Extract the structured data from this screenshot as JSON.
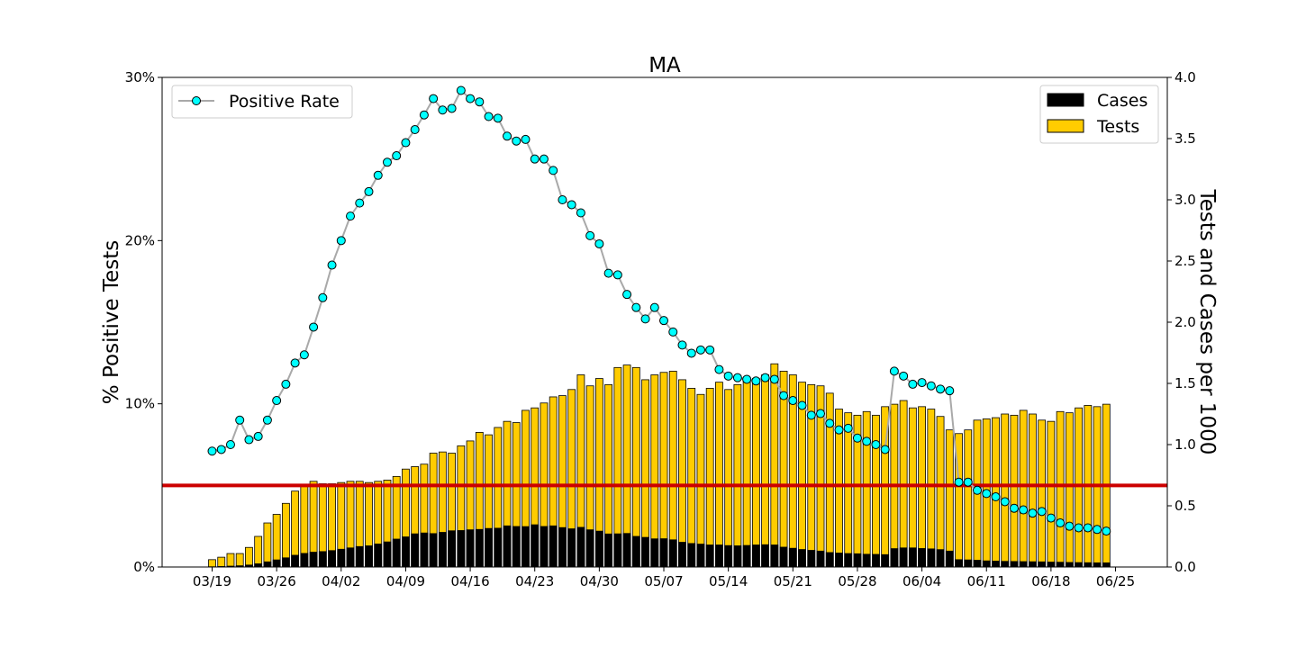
{
  "chart_data": {
    "type": "bar+line",
    "title": "MA",
    "ylabel_left": "% Positive Tests",
    "ylabel_right": "Tests and Cases per 1000",
    "x_start_label": "03/19",
    "x_tick_labels": [
      "03/19",
      "03/26",
      "04/02",
      "04/09",
      "04/16",
      "04/23",
      "04/30",
      "05/07",
      "05/14",
      "05/21",
      "05/28",
      "06/04",
      "06/11",
      "06/18",
      "06/25"
    ],
    "y_left_ticks": [
      "0%",
      "10%",
      "20%",
      "30%"
    ],
    "y_left_lim": [
      0,
      30
    ],
    "y_right_ticks": [
      "0.0",
      "0.5",
      "1.0",
      "1.5",
      "2.0",
      "2.5",
      "3.0",
      "3.5",
      "4.0"
    ],
    "y_right_lim": [
      0,
      4
    ],
    "threshold_percent": 5,
    "legend_line": {
      "label": "Positive Rate",
      "position": "top-left"
    },
    "legend_bars": {
      "position": "top-right",
      "items": [
        {
          "label": "Cases",
          "color": "#000000"
        },
        {
          "label": "Tests",
          "color": "#ffcc00"
        }
      ]
    },
    "colors": {
      "tests": "#ffcc00",
      "cases": "#000000",
      "rate_line": "#a9a9a9",
      "rate_marker": "#00ffff",
      "threshold": "#cc0000"
    },
    "series": [
      {
        "name": "Tests",
        "values": [
          0.06,
          0.08,
          0.11,
          0.11,
          0.16,
          0.25,
          0.36,
          0.43,
          0.52,
          0.62,
          0.67,
          0.7,
          0.68,
          0.68,
          0.69,
          0.7,
          0.7,
          0.69,
          0.7,
          0.71,
          0.74,
          0.8,
          0.82,
          0.84,
          0.93,
          0.94,
          0.93,
          0.99,
          1.03,
          1.1,
          1.08,
          1.14,
          1.19,
          1.18,
          1.28,
          1.3,
          1.34,
          1.39,
          1.4,
          1.45,
          1.57,
          1.48,
          1.54,
          1.49,
          1.63,
          1.65,
          1.63,
          1.53,
          1.57,
          1.59,
          1.6,
          1.53,
          1.46,
          1.41,
          1.46,
          1.51,
          1.45,
          1.49,
          1.52,
          1.54,
          1.57,
          1.66,
          1.6,
          1.57,
          1.51,
          1.49,
          1.48,
          1.42,
          1.29,
          1.26,
          1.24,
          1.27,
          1.24,
          1.31,
          1.33,
          1.36,
          1.3,
          1.31,
          1.29,
          1.23,
          1.12,
          1.09,
          1.12,
          1.2,
          1.21,
          1.22,
          1.25,
          1.24,
          1.28,
          1.25,
          1.2,
          1.19,
          1.27,
          1.26,
          1.3,
          1.32,
          1.31,
          1.33
        ]
      },
      {
        "name": "Cases",
        "values": [
          0.002,
          0.004,
          0.007,
          0.01,
          0.016,
          0.026,
          0.042,
          0.058,
          0.075,
          0.096,
          0.111,
          0.121,
          0.126,
          0.134,
          0.145,
          0.156,
          0.167,
          0.173,
          0.188,
          0.205,
          0.228,
          0.246,
          0.271,
          0.278,
          0.273,
          0.283,
          0.296,
          0.298,
          0.304,
          0.307,
          0.315,
          0.317,
          0.336,
          0.331,
          0.33,
          0.345,
          0.331,
          0.336,
          0.322,
          0.312,
          0.324,
          0.304,
          0.293,
          0.27,
          0.271,
          0.274,
          0.25,
          0.242,
          0.23,
          0.231,
          0.222,
          0.202,
          0.192,
          0.187,
          0.18,
          0.18,
          0.175,
          0.173,
          0.176,
          0.18,
          0.182,
          0.18,
          0.162,
          0.153,
          0.143,
          0.136,
          0.13,
          0.118,
          0.114,
          0.11,
          0.108,
          0.104,
          0.103,
          0.101,
          0.15,
          0.156,
          0.156,
          0.151,
          0.148,
          0.142,
          0.13,
          0.06,
          0.058,
          0.055,
          0.05,
          0.048,
          0.046,
          0.045,
          0.044,
          0.043,
          0.042,
          0.04,
          0.039,
          0.037,
          0.036,
          0.035,
          0.034,
          0.034
        ]
      },
      {
        "name": "Positive Rate",
        "values": [
          7.1,
          7.2,
          7.5,
          9.0,
          7.8,
          8.0,
          9.0,
          10.2,
          11.2,
          12.5,
          13.0,
          14.7,
          16.5,
          18.5,
          20.0,
          21.5,
          22.3,
          23.0,
          24.0,
          24.8,
          25.2,
          26.0,
          26.8,
          27.7,
          28.7,
          28.0,
          28.1,
          29.2,
          28.7,
          28.5,
          27.6,
          27.5,
          26.4,
          26.1,
          26.2,
          25.0,
          25.0,
          24.3,
          22.5,
          22.2,
          21.7,
          20.3,
          19.8,
          18.0,
          17.9,
          16.7,
          15.9,
          15.2,
          15.9,
          15.1,
          14.4,
          13.6,
          13.1,
          13.3,
          13.3,
          12.1,
          11.7,
          11.6,
          11.5,
          11.4,
          11.6,
          11.5,
          10.5,
          10.2,
          9.9,
          9.3,
          9.4,
          8.8,
          8.4,
          8.5,
          7.9,
          7.7,
          7.5,
          7.2,
          12.0,
          11.7,
          11.2,
          11.3,
          11.1,
          10.9,
          10.8,
          5.2,
          5.2,
          4.7,
          4.5,
          4.3,
          4.0,
          3.6,
          3.5,
          3.3,
          3.4,
          3.0,
          2.7,
          2.5,
          2.4,
          2.4,
          2.3,
          2.2
        ]
      }
    ]
  }
}
